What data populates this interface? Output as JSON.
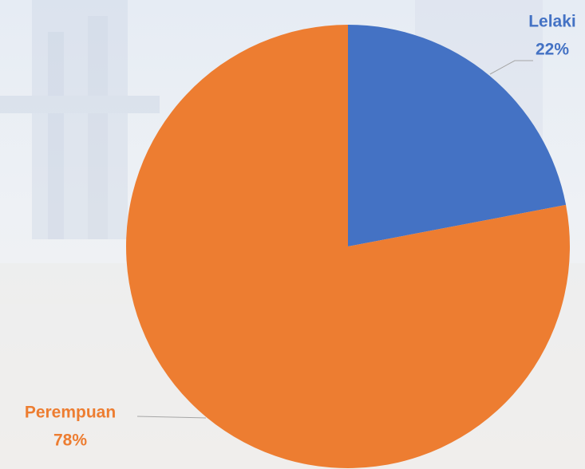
{
  "chart_data": {
    "type": "pie",
    "categories": [
      "Lelaki",
      "Perempuan"
    ],
    "values": [
      22,
      78
    ],
    "value_labels": [
      "22%",
      "78%"
    ],
    "colors": [
      "#4472c4",
      "#ed7d31"
    ]
  }
}
